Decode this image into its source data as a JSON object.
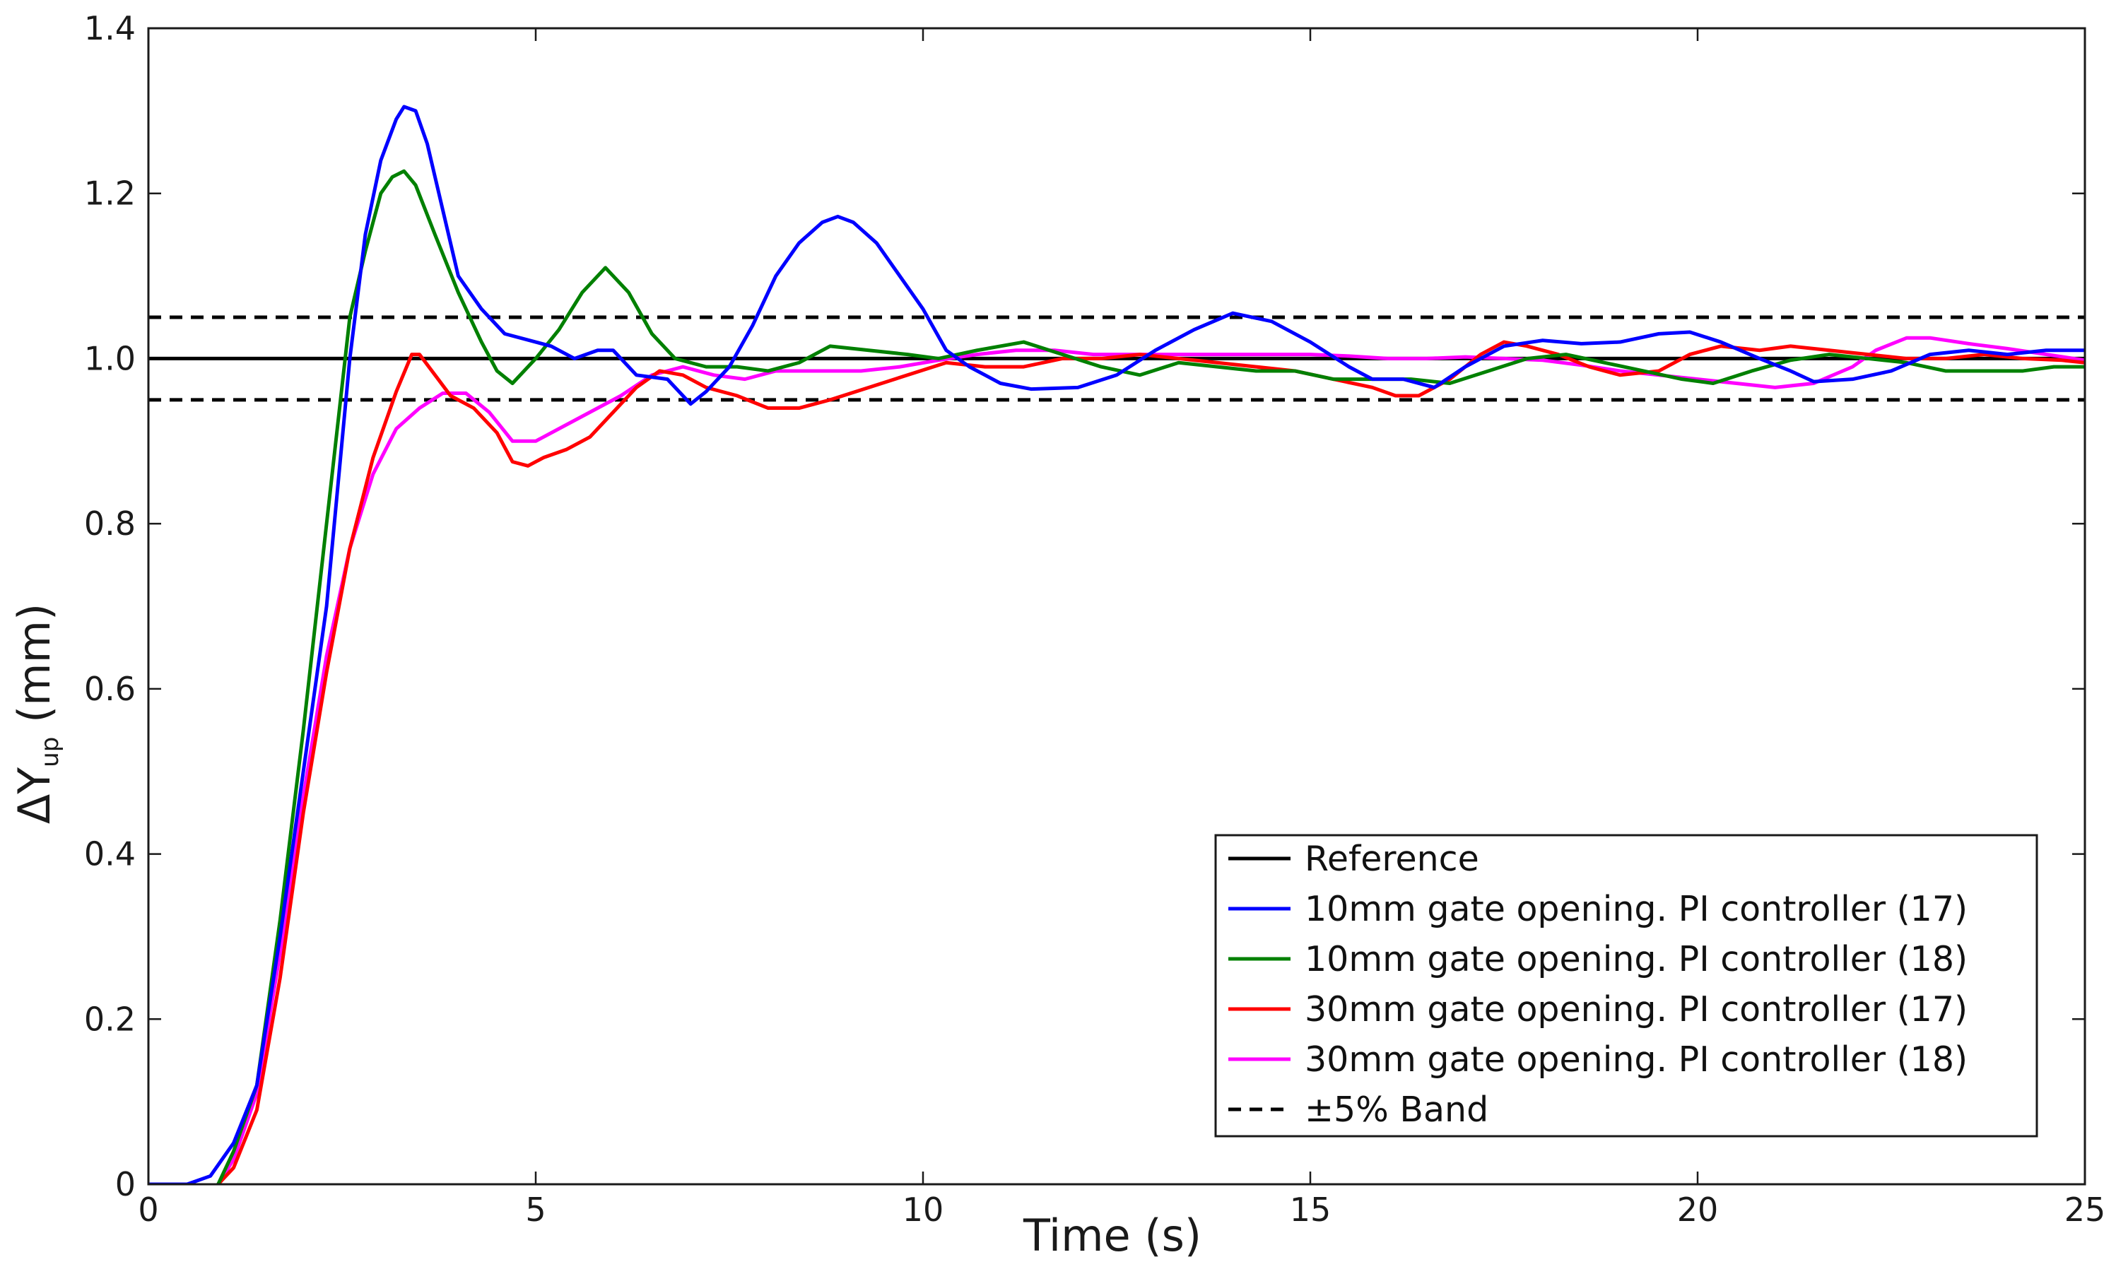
{
  "chart_data": {
    "type": "line",
    "title": "",
    "xlabel": "Time (s)",
    "ylabel_main": "ΔY",
    "ylabel_sub": "up",
    "ylabel_unit": " (mm)",
    "xlim": [
      0,
      25
    ],
    "ylim": [
      0,
      1.4
    ],
    "x_ticks": [
      0,
      5,
      10,
      15,
      20,
      25
    ],
    "x_tick_labels": [
      "0",
      "5",
      "10",
      "15",
      "20",
      "25"
    ],
    "y_ticks": [
      0,
      0.2,
      0.4,
      0.6,
      0.8,
      1.0,
      1.2,
      1.4
    ],
    "y_tick_labels": [
      "0",
      "0.2",
      "0.4",
      "0.6",
      "0.8",
      "1.0",
      "1.2",
      "1.4"
    ],
    "grid": false,
    "legend_position": "bottom-right",
    "series": [
      {
        "name": "Reference",
        "color": "#000000",
        "dash": "solid",
        "points": [
          [
            0,
            1.0
          ],
          [
            25,
            1.0
          ]
        ]
      },
      {
        "name": "10mm gate opening. PI controller (17)",
        "color": "#0000ff",
        "dash": "solid",
        "points": [
          [
            0,
            0
          ],
          [
            0.5,
            0
          ],
          [
            0.8,
            0.01
          ],
          [
            1.1,
            0.05
          ],
          [
            1.4,
            0.12
          ],
          [
            1.7,
            0.3
          ],
          [
            2.0,
            0.5
          ],
          [
            2.3,
            0.7
          ],
          [
            2.6,
            1.0
          ],
          [
            2.8,
            1.15
          ],
          [
            3.0,
            1.24
          ],
          [
            3.2,
            1.29
          ],
          [
            3.3,
            1.305
          ],
          [
            3.45,
            1.3
          ],
          [
            3.6,
            1.26
          ],
          [
            3.8,
            1.18
          ],
          [
            4.0,
            1.1
          ],
          [
            4.3,
            1.06
          ],
          [
            4.6,
            1.03
          ],
          [
            5.0,
            1.02
          ],
          [
            5.2,
            1.015
          ],
          [
            5.5,
            1.0
          ],
          [
            5.8,
            1.01
          ],
          [
            6.0,
            1.01
          ],
          [
            6.3,
            0.98
          ],
          [
            6.7,
            0.975
          ],
          [
            7.0,
            0.945
          ],
          [
            7.2,
            0.96
          ],
          [
            7.5,
            0.99
          ],
          [
            7.8,
            1.04
          ],
          [
            8.1,
            1.1
          ],
          [
            8.4,
            1.14
          ],
          [
            8.7,
            1.165
          ],
          [
            8.9,
            1.172
          ],
          [
            9.1,
            1.165
          ],
          [
            9.4,
            1.14
          ],
          [
            9.7,
            1.1
          ],
          [
            10.0,
            1.06
          ],
          [
            10.3,
            1.01
          ],
          [
            10.6,
            0.99
          ],
          [
            11.0,
            0.97
          ],
          [
            11.4,
            0.963
          ],
          [
            12.0,
            0.965
          ],
          [
            12.5,
            0.98
          ],
          [
            13.0,
            1.01
          ],
          [
            13.5,
            1.035
          ],
          [
            14.0,
            1.055
          ],
          [
            14.5,
            1.045
          ],
          [
            15.0,
            1.02
          ],
          [
            15.5,
            0.99
          ],
          [
            15.8,
            0.975
          ],
          [
            16.2,
            0.975
          ],
          [
            16.6,
            0.965
          ],
          [
            17.0,
            0.99
          ],
          [
            17.5,
            1.015
          ],
          [
            18.0,
            1.022
          ],
          [
            18.5,
            1.018
          ],
          [
            19.0,
            1.02
          ],
          [
            19.5,
            1.03
          ],
          [
            19.9,
            1.032
          ],
          [
            20.3,
            1.02
          ],
          [
            20.8,
            1.0
          ],
          [
            21.2,
            0.985
          ],
          [
            21.5,
            0.972
          ],
          [
            22.0,
            0.975
          ],
          [
            22.5,
            0.985
          ],
          [
            23.0,
            1.005
          ],
          [
            23.5,
            1.01
          ],
          [
            24.0,
            1.005
          ],
          [
            24.5,
            1.01
          ],
          [
            25,
            1.01
          ]
        ]
      },
      {
        "name": "10mm gate opening. PI controller (18)",
        "color": "#008000",
        "dash": "solid",
        "points": [
          [
            0.9,
            0
          ],
          [
            1.1,
            0.04
          ],
          [
            1.4,
            0.12
          ],
          [
            1.7,
            0.32
          ],
          [
            2.0,
            0.55
          ],
          [
            2.3,
            0.8
          ],
          [
            2.6,
            1.05
          ],
          [
            2.8,
            1.13
          ],
          [
            3.0,
            1.2
          ],
          [
            3.15,
            1.22
          ],
          [
            3.3,
            1.227
          ],
          [
            3.45,
            1.21
          ],
          [
            3.7,
            1.15
          ],
          [
            4.0,
            1.08
          ],
          [
            4.3,
            1.02
          ],
          [
            4.5,
            0.985
          ],
          [
            4.7,
            0.97
          ],
          [
            5.0,
            1.0
          ],
          [
            5.3,
            1.035
          ],
          [
            5.6,
            1.08
          ],
          [
            5.9,
            1.11
          ],
          [
            6.2,
            1.08
          ],
          [
            6.5,
            1.03
          ],
          [
            6.8,
            1.0
          ],
          [
            7.2,
            0.99
          ],
          [
            7.6,
            0.99
          ],
          [
            8.0,
            0.985
          ],
          [
            8.4,
            0.995
          ],
          [
            8.8,
            1.015
          ],
          [
            9.3,
            1.01
          ],
          [
            9.8,
            1.005
          ],
          [
            10.2,
            1.0
          ],
          [
            10.7,
            1.01
          ],
          [
            11.3,
            1.02
          ],
          [
            11.8,
            1.005
          ],
          [
            12.3,
            0.99
          ],
          [
            12.8,
            0.98
          ],
          [
            13.3,
            0.995
          ],
          [
            13.8,
            0.99
          ],
          [
            14.3,
            0.985
          ],
          [
            14.8,
            0.985
          ],
          [
            15.3,
            0.975
          ],
          [
            15.8,
            0.975
          ],
          [
            16.3,
            0.975
          ],
          [
            16.8,
            0.97
          ],
          [
            17.3,
            0.985
          ],
          [
            17.8,
            1.0
          ],
          [
            18.3,
            1.005
          ],
          [
            18.8,
            0.995
          ],
          [
            19.3,
            0.985
          ],
          [
            19.8,
            0.975
          ],
          [
            20.2,
            0.97
          ],
          [
            20.7,
            0.985
          ],
          [
            21.2,
            0.998
          ],
          [
            21.7,
            1.005
          ],
          [
            22.2,
            1.0
          ],
          [
            22.7,
            0.995
          ],
          [
            23.2,
            0.985
          ],
          [
            23.7,
            0.985
          ],
          [
            24.2,
            0.985
          ],
          [
            24.6,
            0.99
          ],
          [
            25,
            0.99
          ]
        ]
      },
      {
        "name": "30mm gate opening. PI controller (17)",
        "color": "#ff0000",
        "dash": "solid",
        "points": [
          [
            0.9,
            0
          ],
          [
            1.1,
            0.02
          ],
          [
            1.4,
            0.09
          ],
          [
            1.7,
            0.25
          ],
          [
            2.0,
            0.45
          ],
          [
            2.3,
            0.62
          ],
          [
            2.6,
            0.77
          ],
          [
            2.9,
            0.88
          ],
          [
            3.2,
            0.96
          ],
          [
            3.4,
            1.005
          ],
          [
            3.5,
            1.005
          ],
          [
            3.7,
            0.98
          ],
          [
            3.9,
            0.955
          ],
          [
            4.2,
            0.94
          ],
          [
            4.5,
            0.91
          ],
          [
            4.7,
            0.875
          ],
          [
            4.9,
            0.87
          ],
          [
            5.1,
            0.88
          ],
          [
            5.4,
            0.89
          ],
          [
            5.7,
            0.905
          ],
          [
            6.0,
            0.935
          ],
          [
            6.3,
            0.965
          ],
          [
            6.6,
            0.985
          ],
          [
            6.9,
            0.98
          ],
          [
            7.2,
            0.965
          ],
          [
            7.6,
            0.955
          ],
          [
            8.0,
            0.94
          ],
          [
            8.4,
            0.94
          ],
          [
            8.8,
            0.95
          ],
          [
            9.3,
            0.965
          ],
          [
            9.8,
            0.98
          ],
          [
            10.3,
            0.995
          ],
          [
            10.8,
            0.99
          ],
          [
            11.3,
            0.99
          ],
          [
            11.8,
            1.0
          ],
          [
            12.3,
            1.0
          ],
          [
            12.8,
            1.005
          ],
          [
            13.3,
            1.0
          ],
          [
            13.8,
            0.995
          ],
          [
            14.3,
            0.99
          ],
          [
            14.8,
            0.985
          ],
          [
            15.3,
            0.975
          ],
          [
            15.8,
            0.965
          ],
          [
            16.1,
            0.955
          ],
          [
            16.4,
            0.955
          ],
          [
            16.8,
            0.975
          ],
          [
            17.2,
            1.005
          ],
          [
            17.5,
            1.02
          ],
          [
            17.8,
            1.015
          ],
          [
            18.2,
            1.005
          ],
          [
            18.6,
            0.99
          ],
          [
            19.0,
            0.98
          ],
          [
            19.5,
            0.985
          ],
          [
            19.9,
            1.005
          ],
          [
            20.3,
            1.015
          ],
          [
            20.8,
            1.01
          ],
          [
            21.2,
            1.015
          ],
          [
            21.7,
            1.01
          ],
          [
            22.2,
            1.005
          ],
          [
            22.7,
            1.0
          ],
          [
            23.2,
            1.0
          ],
          [
            23.7,
            1.005
          ],
          [
            24.2,
            1.0
          ],
          [
            24.7,
            0.998
          ],
          [
            25,
            0.995
          ]
        ]
      },
      {
        "name": "30mm gate opening. PI controller (18)",
        "color": "#ff00ff",
        "dash": "solid",
        "points": [
          [
            0.9,
            0
          ],
          [
            1.1,
            0.03
          ],
          [
            1.4,
            0.11
          ],
          [
            1.7,
            0.28
          ],
          [
            2.0,
            0.47
          ],
          [
            2.3,
            0.64
          ],
          [
            2.6,
            0.77
          ],
          [
            2.9,
            0.86
          ],
          [
            3.2,
            0.915
          ],
          [
            3.5,
            0.94
          ],
          [
            3.8,
            0.958
          ],
          [
            4.1,
            0.958
          ],
          [
            4.4,
            0.935
          ],
          [
            4.7,
            0.9
          ],
          [
            5.0,
            0.9
          ],
          [
            5.3,
            0.915
          ],
          [
            5.7,
            0.935
          ],
          [
            6.1,
            0.955
          ],
          [
            6.5,
            0.98
          ],
          [
            6.9,
            0.99
          ],
          [
            7.3,
            0.98
          ],
          [
            7.7,
            0.975
          ],
          [
            8.1,
            0.985
          ],
          [
            8.6,
            0.985
          ],
          [
            9.2,
            0.985
          ],
          [
            9.7,
            0.99
          ],
          [
            10.2,
            0.998
          ],
          [
            10.7,
            1.005
          ],
          [
            11.2,
            1.01
          ],
          [
            11.7,
            1.01
          ],
          [
            12.2,
            1.005
          ],
          [
            12.8,
            1.005
          ],
          [
            13.3,
            1.005
          ],
          [
            13.9,
            1.005
          ],
          [
            14.5,
            1.005
          ],
          [
            15.0,
            1.005
          ],
          [
            15.5,
            1.003
          ],
          [
            16.0,
            1.0
          ],
          [
            16.5,
            1.0
          ],
          [
            17.0,
            1.002
          ],
          [
            17.5,
            1.0
          ],
          [
            18.0,
            0.998
          ],
          [
            18.5,
            0.992
          ],
          [
            19.0,
            0.985
          ],
          [
            19.5,
            0.98
          ],
          [
            20.0,
            0.975
          ],
          [
            20.5,
            0.97
          ],
          [
            21.0,
            0.965
          ],
          [
            21.5,
            0.97
          ],
          [
            22.0,
            0.99
          ],
          [
            22.3,
            1.01
          ],
          [
            22.7,
            1.025
          ],
          [
            23.0,
            1.025
          ],
          [
            23.5,
            1.018
          ],
          [
            24.0,
            1.012
          ],
          [
            24.5,
            1.005
          ],
          [
            25,
            0.998
          ]
        ]
      },
      {
        "name": "±5% Band",
        "color": "#000000",
        "dash": "dashed",
        "points": [
          [
            0,
            1.05
          ],
          [
            25,
            1.05
          ]
        ],
        "points_lower": [
          [
            0,
            0.95
          ],
          [
            25,
            0.95
          ]
        ]
      }
    ]
  }
}
